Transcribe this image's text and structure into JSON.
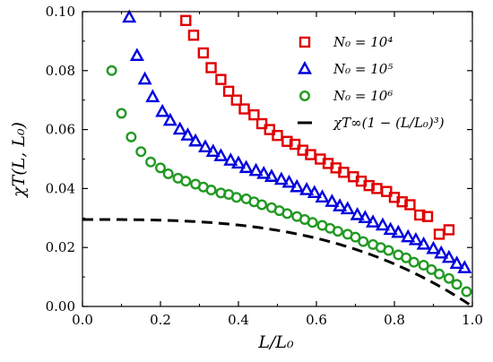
{
  "chart_data": {
    "type": "scatter",
    "xlabel": "L/L₀",
    "ylabel": "χT(L, L₀)",
    "xlim": [
      0.0,
      1.0
    ],
    "ylim": [
      0.0,
      0.1
    ],
    "xticks": [
      "0.0",
      "0.2",
      "0.4",
      "0.6",
      "0.8",
      "1.0"
    ],
    "yticks": [
      "0.00",
      "0.02",
      "0.04",
      "0.06",
      "0.08",
      "0.10"
    ],
    "grid": false,
    "legend_position": "top-right",
    "series": [
      {
        "name": "N₀ = 10⁴",
        "marker": "square",
        "color": "#e00000",
        "points": [
          [
            0.265,
            0.097
          ],
          [
            0.285,
            0.092
          ],
          [
            0.31,
            0.086
          ],
          [
            0.33,
            0.081
          ],
          [
            0.355,
            0.077
          ],
          [
            0.375,
            0.073
          ],
          [
            0.395,
            0.07
          ],
          [
            0.415,
            0.067
          ],
          [
            0.44,
            0.065
          ],
          [
            0.46,
            0.062
          ],
          [
            0.48,
            0.06
          ],
          [
            0.5,
            0.058
          ],
          [
            0.525,
            0.056
          ],
          [
            0.545,
            0.055
          ],
          [
            0.565,
            0.053
          ],
          [
            0.585,
            0.0515
          ],
          [
            0.61,
            0.05
          ],
          [
            0.63,
            0.0485
          ],
          [
            0.65,
            0.047
          ],
          [
            0.67,
            0.0455
          ],
          [
            0.695,
            0.044
          ],
          [
            0.715,
            0.0425
          ],
          [
            0.735,
            0.041
          ],
          [
            0.755,
            0.04
          ],
          [
            0.78,
            0.039
          ],
          [
            0.8,
            0.037
          ],
          [
            0.82,
            0.0355
          ],
          [
            0.84,
            0.0345
          ],
          [
            0.865,
            0.031
          ],
          [
            0.885,
            0.0305
          ],
          [
            0.915,
            0.0245
          ],
          [
            0.94,
            0.026
          ]
        ]
      },
      {
        "name": "N₀ = 10⁵",
        "marker": "triangle",
        "color": "#0000dd",
        "points": [
          [
            0.12,
            0.098
          ],
          [
            0.14,
            0.085
          ],
          [
            0.16,
            0.077
          ],
          [
            0.18,
            0.071
          ],
          [
            0.205,
            0.066
          ],
          [
            0.225,
            0.063
          ],
          [
            0.25,
            0.06
          ],
          [
            0.27,
            0.058
          ],
          [
            0.29,
            0.056
          ],
          [
            0.315,
            0.054
          ],
          [
            0.335,
            0.0525
          ],
          [
            0.355,
            0.051
          ],
          [
            0.38,
            0.0495
          ],
          [
            0.4,
            0.0485
          ],
          [
            0.42,
            0.047
          ],
          [
            0.445,
            0.046
          ],
          [
            0.465,
            0.045
          ],
          [
            0.485,
            0.044
          ],
          [
            0.51,
            0.043
          ],
          [
            0.53,
            0.042
          ],
          [
            0.55,
            0.0405
          ],
          [
            0.575,
            0.0395
          ],
          [
            0.595,
            0.0385
          ],
          [
            0.615,
            0.037
          ],
          [
            0.64,
            0.0355
          ],
          [
            0.66,
            0.034
          ],
          [
            0.68,
            0.033
          ],
          [
            0.705,
            0.031
          ],
          [
            0.725,
            0.03
          ],
          [
            0.745,
            0.0285
          ],
          [
            0.77,
            0.0275
          ],
          [
            0.79,
            0.026
          ],
          [
            0.81,
            0.025
          ],
          [
            0.835,
            0.0235
          ],
          [
            0.855,
            0.0225
          ],
          [
            0.875,
            0.021
          ],
          [
            0.9,
            0.0195
          ],
          [
            0.92,
            0.018
          ],
          [
            0.94,
            0.0165
          ],
          [
            0.96,
            0.0145
          ],
          [
            0.98,
            0.013
          ]
        ]
      },
      {
        "name": "N₀ = 10⁶",
        "marker": "circle",
        "color": "#229922",
        "points": [
          [
            0.075,
            0.08
          ],
          [
            0.1,
            0.0655
          ],
          [
            0.125,
            0.0575
          ],
          [
            0.15,
            0.0525
          ],
          [
            0.175,
            0.049
          ],
          [
            0.2,
            0.047
          ],
          [
            0.22,
            0.045
          ],
          [
            0.245,
            0.0435
          ],
          [
            0.265,
            0.0425
          ],
          [
            0.29,
            0.0415
          ],
          [
            0.31,
            0.0405
          ],
          [
            0.33,
            0.0395
          ],
          [
            0.355,
            0.0385
          ],
          [
            0.375,
            0.038
          ],
          [
            0.395,
            0.037
          ],
          [
            0.42,
            0.0365
          ],
          [
            0.44,
            0.0355
          ],
          [
            0.46,
            0.0345
          ],
          [
            0.485,
            0.0335
          ],
          [
            0.505,
            0.0325
          ],
          [
            0.525,
            0.0315
          ],
          [
            0.55,
            0.0305
          ],
          [
            0.57,
            0.0295
          ],
          [
            0.59,
            0.0285
          ],
          [
            0.615,
            0.0275
          ],
          [
            0.635,
            0.0265
          ],
          [
            0.655,
            0.0255
          ],
          [
            0.68,
            0.0245
          ],
          [
            0.7,
            0.0235
          ],
          [
            0.72,
            0.022
          ],
          [
            0.745,
            0.021
          ],
          [
            0.765,
            0.02
          ],
          [
            0.785,
            0.019
          ],
          [
            0.81,
            0.0175
          ],
          [
            0.83,
            0.0165
          ],
          [
            0.85,
            0.015
          ],
          [
            0.875,
            0.014
          ],
          [
            0.895,
            0.0125
          ],
          [
            0.915,
            0.011
          ],
          [
            0.94,
            0.0095
          ],
          [
            0.96,
            0.0075
          ],
          [
            0.985,
            0.005
          ]
        ]
      },
      {
        "name": "χT∞(1 − (L/L₀)³)",
        "marker": "dashed-line",
        "color": "#000000",
        "amplitude": 0.0295
      }
    ]
  }
}
